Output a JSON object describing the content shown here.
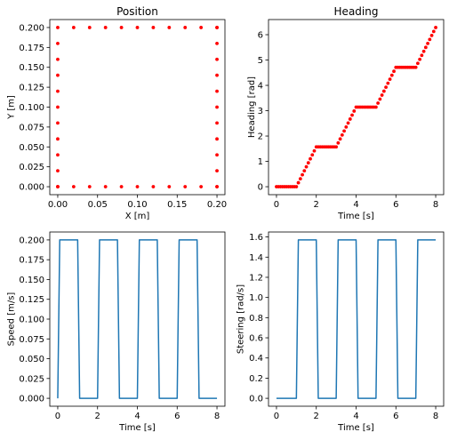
{
  "chart_data": [
    {
      "type": "scatter",
      "title": "Position",
      "xlabel": "X [m]",
      "ylabel": "Y [m]",
      "xlim": [
        -0.01,
        0.21
      ],
      "ylim": [
        -0.01,
        0.21
      ],
      "xticks": [
        "0.00",
        "0.05",
        "0.10",
        "0.15",
        "0.20"
      ],
      "yticks": [
        "0.000",
        "0.025",
        "0.050",
        "0.075",
        "0.100",
        "0.125",
        "0.150",
        "0.175",
        "0.200"
      ],
      "grid": false,
      "color": "#ff0000",
      "x": [
        0,
        0,
        0,
        0,
        0,
        0,
        0,
        0,
        0,
        0,
        0,
        0,
        0.02,
        0.04,
        0.06,
        0.08,
        0.1,
        0.12,
        0.14,
        0.16,
        0.18,
        0.2,
        0.2,
        0.2,
        0.2,
        0.2,
        0.2,
        0.2,
        0.2,
        0.2,
        0.2,
        0.2,
        0.2,
        0.2,
        0.18,
        0.16,
        0.14,
        0.12,
        0.1,
        0.08,
        0.06,
        0.04,
        0.02,
        0
      ],
      "y": [
        0,
        0,
        0.02,
        0.04,
        0.06,
        0.08,
        0.1,
        0.12,
        0.14,
        0.16,
        0.18,
        0.2,
        0.2,
        0.2,
        0.2,
        0.2,
        0.2,
        0.2,
        0.2,
        0.2,
        0.2,
        0.2,
        0.2,
        0.18,
        0.16,
        0.14,
        0.12,
        0.1,
        0.08,
        0.06,
        0.04,
        0.02,
        0,
        0,
        0,
        0,
        0,
        0,
        0,
        0,
        0,
        0,
        0,
        0
      ]
    },
    {
      "type": "scatter",
      "title": "Heading",
      "xlabel": "Time [s]",
      "ylabel": "Heading [rad]",
      "xlim": [
        -0.4,
        8.4
      ],
      "ylim": [
        -0.314,
        6.597
      ],
      "xticks": [
        "0",
        "2",
        "4",
        "6",
        "8"
      ],
      "yticks": [
        "0",
        "1",
        "2",
        "3",
        "4",
        "5",
        "6"
      ],
      "grid": false,
      "color": "#ff0000",
      "x": [
        0,
        0.1,
        0.2,
        0.3,
        0.4,
        0.5,
        0.6,
        0.7,
        0.8,
        0.9,
        1.0,
        1.1,
        1.2,
        1.3,
        1.4,
        1.5,
        1.6,
        1.7,
        1.8,
        1.9,
        2.0,
        2.1,
        2.2,
        2.3,
        2.4,
        2.5,
        2.6,
        2.7,
        2.8,
        2.9,
        3.0,
        3.1,
        3.2,
        3.3,
        3.4,
        3.5,
        3.6,
        3.7,
        3.8,
        3.9,
        4.0,
        4.1,
        4.2,
        4.3,
        4.4,
        4.5,
        4.6,
        4.7,
        4.8,
        4.9,
        5.0,
        5.1,
        5.2,
        5.3,
        5.4,
        5.5,
        5.6,
        5.7,
        5.8,
        5.9,
        6.0,
        6.1,
        6.2,
        6.3,
        6.4,
        6.5,
        6.6,
        6.7,
        6.8,
        6.9,
        7.0,
        7.1,
        7.2,
        7.3,
        7.4,
        7.5,
        7.6,
        7.7,
        7.8,
        7.9,
        8.0
      ],
      "y": [
        0,
        0,
        0,
        0,
        0,
        0,
        0,
        0,
        0,
        0,
        0,
        0.157,
        0.314,
        0.471,
        0.628,
        0.785,
        0.942,
        1.1,
        1.257,
        1.414,
        1.571,
        1.571,
        1.571,
        1.571,
        1.571,
        1.571,
        1.571,
        1.571,
        1.571,
        1.571,
        1.571,
        1.728,
        1.885,
        2.042,
        2.199,
        2.356,
        2.513,
        2.67,
        2.827,
        2.985,
        3.142,
        3.142,
        3.142,
        3.142,
        3.142,
        3.142,
        3.142,
        3.142,
        3.142,
        3.142,
        3.142,
        3.299,
        3.456,
        3.613,
        3.77,
        3.927,
        4.084,
        4.241,
        4.398,
        4.555,
        4.712,
        4.712,
        4.712,
        4.712,
        4.712,
        4.712,
        4.712,
        4.712,
        4.712,
        4.712,
        4.712,
        4.869,
        5.027,
        5.184,
        5.341,
        5.498,
        5.655,
        5.812,
        5.969,
        6.126,
        6.283
      ]
    },
    {
      "type": "line",
      "title": "",
      "xlabel": "Time [s]",
      "ylabel": "Speed [m/s]",
      "xlim": [
        -0.4,
        8.4
      ],
      "ylim": [
        -0.01,
        0.21
      ],
      "xticks": [
        "0",
        "2",
        "4",
        "6",
        "8"
      ],
      "yticks": [
        "0.000",
        "0.025",
        "0.050",
        "0.075",
        "0.100",
        "0.125",
        "0.150",
        "0.175",
        "0.200"
      ],
      "grid": false,
      "color": "#1f77b4",
      "x": [
        0,
        0.1,
        1.0,
        1.1,
        2.0,
        2.1,
        3.0,
        3.1,
        4.0,
        4.1,
        5.0,
        5.1,
        6.0,
        6.1,
        7.0,
        7.1,
        8.0
      ],
      "y": [
        0,
        0.2,
        0.2,
        0,
        0,
        0.2,
        0.2,
        0,
        0,
        0.2,
        0.2,
        0,
        0,
        0.2,
        0.2,
        0,
        0
      ]
    },
    {
      "type": "line",
      "title": "",
      "xlabel": "Time [s]",
      "ylabel": "Steering [rad/s]",
      "xlim": [
        -0.4,
        8.4
      ],
      "ylim": [
        -0.0785,
        1.6493
      ],
      "xticks": [
        "0",
        "2",
        "4",
        "6",
        "8"
      ],
      "yticks": [
        "0.0",
        "0.2",
        "0.4",
        "0.6",
        "0.8",
        "1.0",
        "1.2",
        "1.4",
        "1.6"
      ],
      "grid": false,
      "color": "#1f77b4",
      "x": [
        0,
        1.0,
        1.1,
        2.0,
        2.1,
        3.0,
        3.1,
        4.0,
        4.1,
        5.0,
        5.1,
        6.0,
        6.1,
        7.0,
        7.1,
        8.0
      ],
      "y": [
        0,
        0,
        1.571,
        1.571,
        0,
        0,
        1.571,
        1.571,
        0,
        0,
        1.571,
        1.571,
        0,
        0,
        1.571,
        1.571
      ]
    }
  ]
}
